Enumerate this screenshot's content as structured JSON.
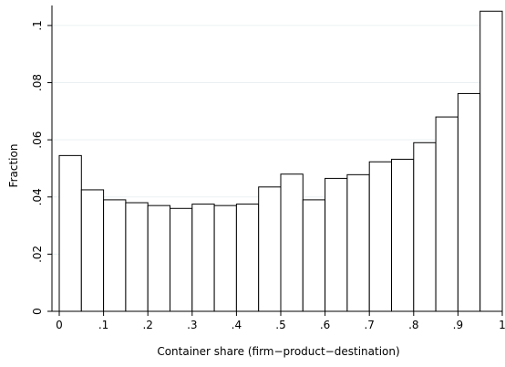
{
  "chart_data": {
    "type": "bar",
    "bin_width": 0.05,
    "bins_start": [
      0,
      0.05,
      0.1,
      0.15,
      0.2,
      0.25,
      0.3,
      0.35,
      0.4,
      0.45,
      0.5,
      0.55,
      0.6,
      0.65,
      0.7,
      0.75,
      0.8,
      0.85,
      0.9,
      0.95
    ],
    "values": [
      0.0545,
      0.0425,
      0.039,
      0.038,
      0.037,
      0.036,
      0.0375,
      0.037,
      0.0375,
      0.0435,
      0.048,
      0.039,
      0.0465,
      0.0478,
      0.0523,
      0.0532,
      0.059,
      0.068,
      0.0762,
      0.105
    ],
    "xlabel": "Container share (firm−product−destination)",
    "ylabel": "Fraction",
    "xlim": [
      0,
      1
    ],
    "ylim": [
      0,
      0.107
    ],
    "x_ticks": [
      {
        "value": 0,
        "label": "0"
      },
      {
        "value": 0.1,
        "label": ".1"
      },
      {
        "value": 0.2,
        "label": ".2"
      },
      {
        "value": 0.3,
        "label": ".3"
      },
      {
        "value": 0.4,
        "label": ".4"
      },
      {
        "value": 0.5,
        "label": ".5"
      },
      {
        "value": 0.6,
        "label": ".6"
      },
      {
        "value": 0.7,
        "label": ".7"
      },
      {
        "value": 0.8,
        "label": ".8"
      },
      {
        "value": 0.9,
        "label": ".9"
      },
      {
        "value": 1,
        "label": "1"
      }
    ],
    "y_ticks": [
      {
        "value": 0,
        "label": "0"
      },
      {
        "value": 0.02,
        "label": ".02"
      },
      {
        "value": 0.04,
        "label": ".04"
      },
      {
        "value": 0.06,
        "label": ".06"
      },
      {
        "value": 0.08,
        "label": ".08"
      },
      {
        "value": 0.1,
        "label": ".1"
      }
    ],
    "grid": "horizontal",
    "bar_fill": "#ffffff",
    "bar_stroke": "#000000",
    "grid_color": "#eaf0f2"
  }
}
